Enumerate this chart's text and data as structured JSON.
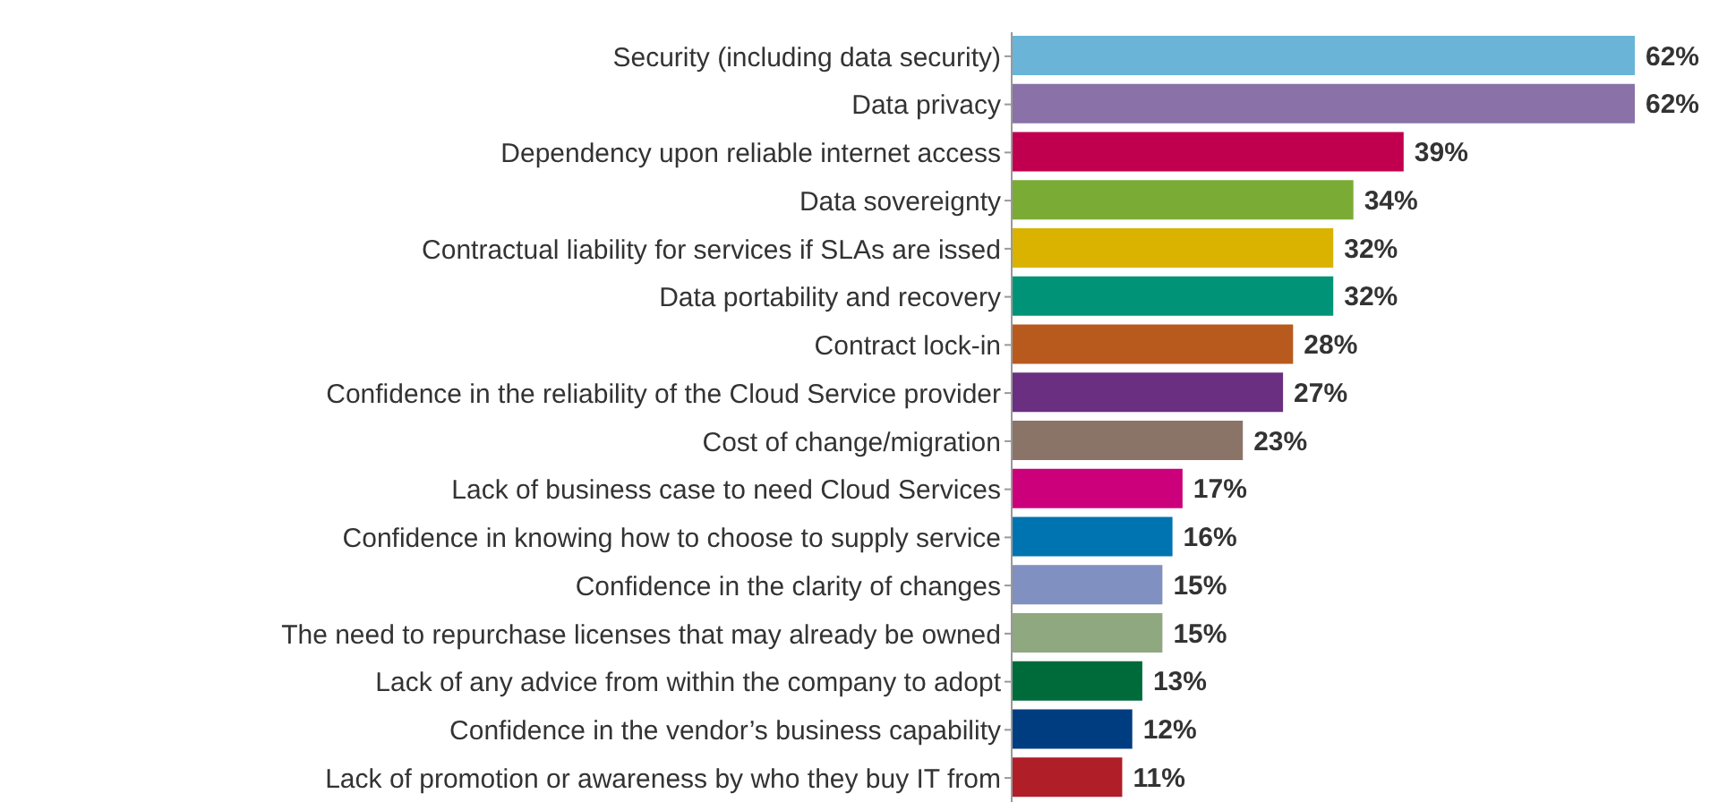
{
  "chart_data": {
    "type": "bar",
    "orientation": "horizontal",
    "categories": [
      "Security (including data security)",
      "Data privacy",
      "Dependency upon reliable internet access",
      "Data sovereignty",
      "Contractual liability for services if SLAs are issed",
      "Data portability and recovery",
      "Contract lock-in",
      "Confidence in the reliability of the Cloud Service provider",
      "Cost of change/migration",
      "Lack of business case to need Cloud Services",
      "Confidence in knowing how to choose to supply service",
      "Confidence in the clarity of changes",
      "The need to repurchase licenses that may already be owned",
      "Lack of any advice from within the company to adopt",
      "Confidence in the vendor’s business capability",
      "Lack of promotion or awareness by who they buy IT from"
    ],
    "values": [
      62,
      62,
      39,
      34,
      32,
      32,
      28,
      27,
      23,
      17,
      16,
      15,
      15,
      13,
      12,
      11
    ],
    "value_labels": [
      "62%",
      "62%",
      "39%",
      "34%",
      "32%",
      "32%",
      "28%",
      "27%",
      "23%",
      "17%",
      "16%",
      "15%",
      "15%",
      "13%",
      "12%",
      "11%"
    ],
    "colors": [
      "#6ab4d8",
      "#8a72a8",
      "#c0004f",
      "#7aab35",
      "#d9b300",
      "#009378",
      "#b85a1e",
      "#6a2f80",
      "#8a7468",
      "#cc007a",
      "#0074b0",
      "#8090c0",
      "#90a880",
      "#006b3a",
      "#003d80",
      "#b01e28"
    ],
    "grid": false,
    "legend": false
  }
}
